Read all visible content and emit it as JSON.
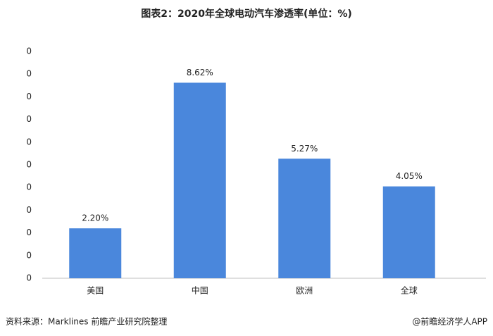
{
  "chart_data": {
    "type": "bar",
    "title": "图表2：2020年全球电动汽车渗透率(单位：%)",
    "categories": [
      "美国",
      "中国",
      "欧洲",
      "全球"
    ],
    "values": [
      2.2,
      8.62,
      5.27,
      4.05
    ],
    "value_labels": [
      "2.20%",
      "8.62%",
      "5.27%",
      "4.05%"
    ],
    "color": "#4a87dc",
    "ylim": [
      0,
      10
    ],
    "yticks": [
      0,
      {
        "value": 1,
        "label": "0"
      },
      {
        "value": 2,
        "label": "0"
      },
      {
        "value": 3,
        "label": "0"
      },
      {
        "value": 4,
        "label": "0"
      },
      {
        "value": 5,
        "label": "0"
      },
      {
        "value": 6,
        "label": "0"
      },
      {
        "value": 7,
        "label": "0"
      },
      {
        "value": 8,
        "label": "0"
      },
      {
        "value": 9,
        "label": "0"
      },
      {
        "value": 10,
        "label": "0"
      }
    ],
    "grid": false
  },
  "footer": {
    "source": "资料来源：Marklines 前瞻产业研究院整理",
    "brand": "@前瞻经济学人APP"
  }
}
